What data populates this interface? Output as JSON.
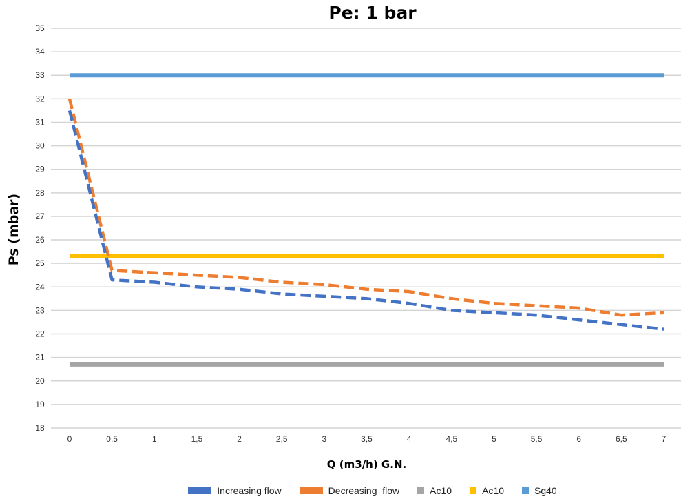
{
  "chart_data": {
    "type": "line",
    "title": "Pe: 1 bar",
    "xlabel": "Q (m3/h) G.N.",
    "ylabel": "Ps (mbar)",
    "ylim": [
      18,
      35
    ],
    "xlim": [
      0,
      7
    ],
    "y_ticks": [
      "18",
      "19",
      "20",
      "21",
      "22",
      "23",
      "24",
      "25",
      "26",
      "27",
      "28",
      "29",
      "30",
      "31",
      "32",
      "33",
      "34",
      "35"
    ],
    "x_ticks": [
      "0",
      "0,5",
      "1",
      "1,5",
      "2",
      "2,5",
      "3",
      "3,5",
      "4",
      "4,5",
      "5",
      "5,5",
      "6",
      "6,5",
      "7"
    ],
    "grid": "horizontal",
    "legend_position": "bottom",
    "series": [
      {
        "name": "Increasing flow",
        "color": "#4472C4",
        "style": "dashed",
        "x": [
          0,
          0.5,
          1,
          1.5,
          2,
          2.5,
          3,
          3.5,
          4,
          4.5,
          5,
          5.5,
          6,
          6.5,
          7
        ],
        "y": [
          31.5,
          24.3,
          24.2,
          24.0,
          23.9,
          23.7,
          23.6,
          23.5,
          23.3,
          23.0,
          22.9,
          22.8,
          22.6,
          22.4,
          22.2
        ]
      },
      {
        "name": "Decreasing  flow",
        "color": "#ED7D31",
        "style": "dashed",
        "x": [
          0,
          0.5,
          1,
          1.5,
          2,
          2.5,
          3,
          3.5,
          4,
          4.5,
          5,
          5.5,
          6,
          6.5,
          7
        ],
        "y": [
          32.0,
          24.7,
          24.6,
          24.5,
          24.4,
          24.2,
          24.1,
          23.9,
          23.8,
          23.5,
          23.3,
          23.2,
          23.1,
          22.8,
          22.9
        ]
      },
      {
        "name": "Ac10",
        "color": "#A5A5A5",
        "style": "solid",
        "x": [
          0,
          7
        ],
        "y": [
          20.7,
          20.7
        ]
      },
      {
        "name": "Ac10",
        "color": "#FFC000",
        "style": "solid",
        "x": [
          0,
          7
        ],
        "y": [
          25.3,
          25.3
        ]
      },
      {
        "name": "Sg40",
        "color": "#5B9BD5",
        "style": "solid",
        "x": [
          0,
          7
        ],
        "y": [
          33.0,
          33.0
        ]
      }
    ]
  }
}
